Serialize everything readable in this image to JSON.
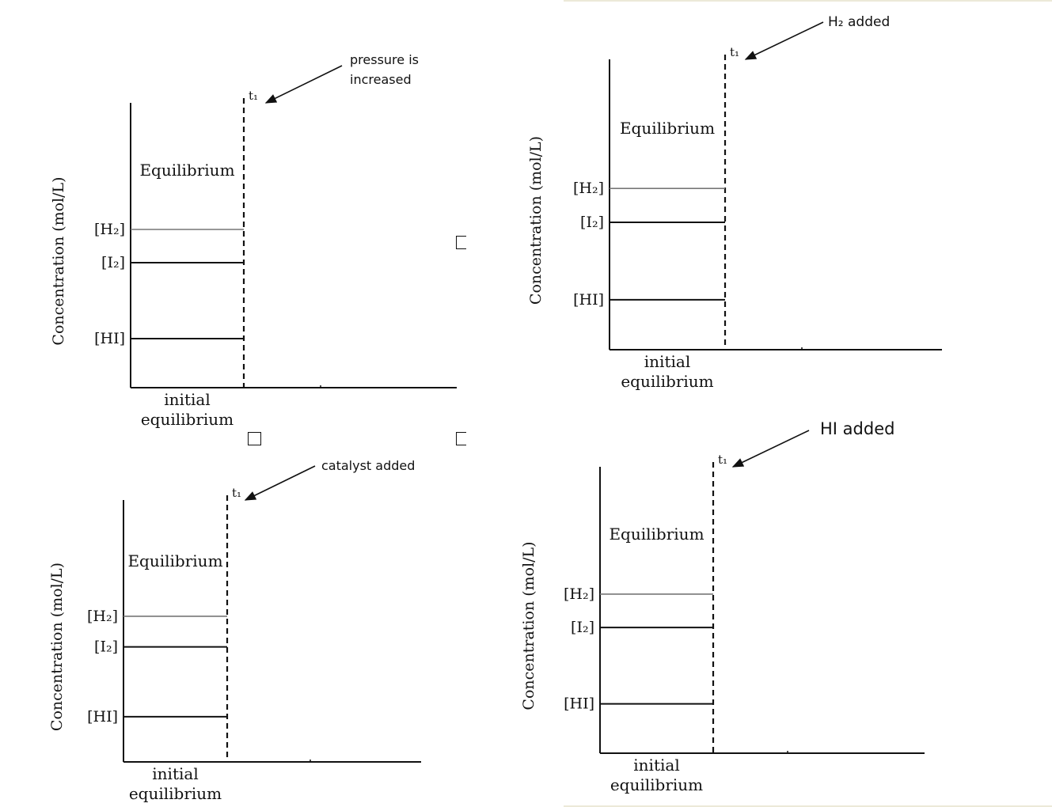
{
  "chart_data": [
    {
      "type": "line",
      "ylabel": "Concentration (mol/L)",
      "xlabel": [
        "initial",
        "equilibrium"
      ],
      "region_label": "Equilibrium",
      "time_marker": "t₁",
      "annotation": [
        "pressure is",
        "increased"
      ],
      "series": [
        {
          "name": "[H₂]",
          "values": [
            3.3
          ]
        },
        {
          "name": "[I₂]",
          "values": [
            2.6
          ]
        },
        {
          "name": "[HI]",
          "values": [
            1.0
          ]
        }
      ]
    },
    {
      "type": "line",
      "ylabel": "Concentration (mol/L)",
      "xlabel": [
        "initial",
        "equilibrium"
      ],
      "region_label": "Equilibrium",
      "time_marker": "t₁",
      "annotation": [
        "H₂ added"
      ],
      "series": [
        {
          "name": "[H₂]",
          "values": [
            3.3
          ]
        },
        {
          "name": "[I₂]",
          "values": [
            2.6
          ]
        },
        {
          "name": "[HI]",
          "values": [
            1.0
          ]
        }
      ]
    },
    {
      "type": "line",
      "ylabel": "Concentration (mol/L)",
      "xlabel": [
        "initial",
        "equilibrium"
      ],
      "region_label": "Equilibrium",
      "time_marker": "t₁",
      "annotation": [
        "catalyst added"
      ],
      "series": [
        {
          "name": "[H₂]",
          "values": [
            3.3
          ]
        },
        {
          "name": "[I₂]",
          "values": [
            2.6
          ]
        },
        {
          "name": "[HI]",
          "values": [
            1.0
          ]
        }
      ]
    },
    {
      "type": "line",
      "ylabel": "Concentration (mol/L)",
      "xlabel": [
        "initial",
        "equilibrium"
      ],
      "region_label": "Equilibrium",
      "time_marker": "t₁",
      "annotation": [
        "HI added"
      ],
      "series": [
        {
          "name": "[H₂]",
          "values": [
            3.3
          ]
        },
        {
          "name": "[I₂]",
          "values": [
            2.6
          ]
        },
        {
          "name": "[HI]",
          "values": [
            1.0
          ]
        }
      ]
    }
  ]
}
